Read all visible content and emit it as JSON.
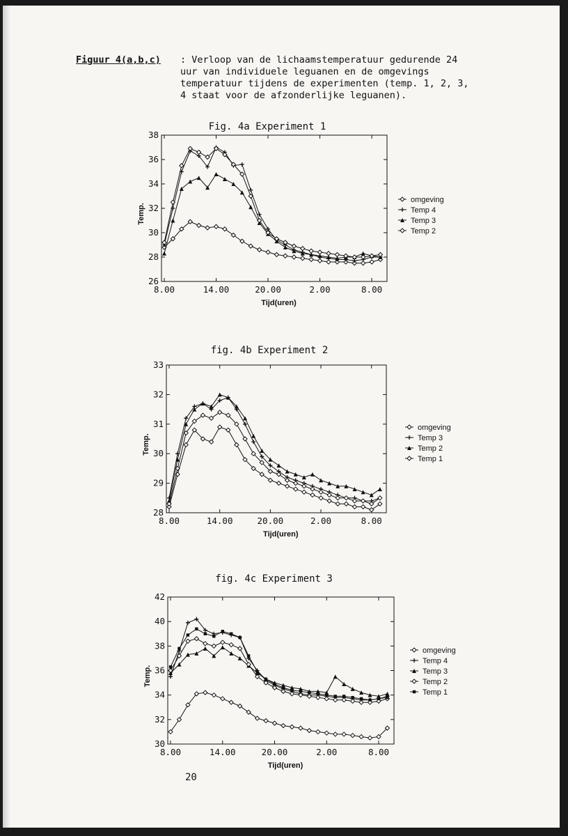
{
  "caption": {
    "label": "Figuur 4(a,b,c)",
    "text": ": Verloop van de lichaamstemperatuur gedurende 24 uur van individuele leguanen en de omgevings temperatuur tijdens de experimenten (temp. 1, 2, 3, 4 staat voor de afzonderlijke leguanen)."
  },
  "page_number": "20",
  "chart_data": [
    {
      "type": "line",
      "title": "Fig. 4a Experiment 1",
      "xlabel": "Tijd(uren)",
      "ylabel": "Temp.",
      "x_tick_labels": [
        "8.00",
        "14.00",
        "20.00",
        "2.00",
        "8.00"
      ],
      "y_ticks": [
        26,
        28,
        30,
        32,
        34,
        36,
        38
      ],
      "ylim": [
        26,
        38
      ],
      "x_hours": [
        8,
        9,
        10,
        11,
        12,
        13,
        14,
        15,
        16,
        17,
        18,
        19,
        20,
        21,
        22,
        23,
        24,
        25,
        26,
        27,
        28,
        29,
        30,
        31,
        32,
        33
      ],
      "legend": [
        "omgeving",
        "Temp 4",
        "Temp 3",
        "Temp 2"
      ],
      "series": [
        {
          "name": "omgeving",
          "marker": "open-diamond",
          "values": [
            28.8,
            29.5,
            30.3,
            30.9,
            30.6,
            30.4,
            30.5,
            30.3,
            29.8,
            29.3,
            28.9,
            28.6,
            28.4,
            28.2,
            28.1,
            28.0,
            27.9,
            27.8,
            27.7,
            27.6,
            27.6,
            27.6,
            27.5,
            27.5,
            27.6,
            27.8
          ]
        },
        {
          "name": "Temp 4",
          "marker": "plus",
          "values": [
            29.0,
            32.0,
            35.0,
            36.7,
            36.3,
            35.4,
            37.0,
            36.6,
            35.5,
            35.6,
            33.5,
            31.5,
            30.3,
            29.4,
            29.0,
            28.6,
            28.4,
            28.2,
            28.0,
            27.9,
            27.8,
            27.8,
            27.7,
            27.8,
            28.0,
            28.0
          ]
        },
        {
          "name": "Temp 3",
          "marker": "filled-triangle",
          "values": [
            28.3,
            31.0,
            33.6,
            34.2,
            34.5,
            33.7,
            34.8,
            34.4,
            34.0,
            33.3,
            32.1,
            30.8,
            29.9,
            29.3,
            28.8,
            28.5,
            28.3,
            28.2,
            28.1,
            28.0,
            27.9,
            28.0,
            28.0,
            28.3,
            28.1,
            28.0
          ]
        },
        {
          "name": "Temp 2",
          "marker": "open-diamond",
          "values": [
            29.2,
            32.5,
            35.5,
            36.9,
            36.6,
            36.2,
            36.9,
            36.4,
            35.6,
            34.8,
            33.0,
            31.0,
            30.0,
            29.5,
            29.2,
            28.9,
            28.7,
            28.5,
            28.4,
            28.3,
            28.2,
            28.1,
            28.0,
            28.0,
            28.1,
            28.2
          ]
        }
      ]
    },
    {
      "type": "line",
      "title": "fig. 4b Experiment 2",
      "xlabel": "Tijd(uren)",
      "ylabel": "Temp.",
      "x_tick_labels": [
        "8.00",
        "14.00",
        "20.00",
        "2.00",
        "8.00"
      ],
      "y_ticks": [
        28,
        29,
        30,
        31,
        32,
        33
      ],
      "ylim": [
        28,
        33
      ],
      "x_hours": [
        8,
        9,
        10,
        11,
        12,
        13,
        14,
        15,
        16,
        17,
        18,
        19,
        20,
        21,
        22,
        23,
        24,
        25,
        26,
        27,
        28,
        29,
        30,
        31,
        32,
        33
      ],
      "legend": [
        "omgeving",
        "Temp 3",
        "Temp 2",
        "Temp 1"
      ],
      "series": [
        {
          "name": "omgeving",
          "marker": "open-diamond",
          "values": [
            28.2,
            29.3,
            30.3,
            30.8,
            30.5,
            30.4,
            30.9,
            30.8,
            30.3,
            29.8,
            29.5,
            29.3,
            29.1,
            29.0,
            28.9,
            28.8,
            28.7,
            28.6,
            28.5,
            28.4,
            28.3,
            28.3,
            28.2,
            28.2,
            28.1,
            28.3
          ]
        },
        {
          "name": "Temp 3",
          "marker": "plus",
          "values": [
            28.5,
            30.0,
            31.2,
            31.6,
            31.7,
            31.5,
            31.8,
            31.9,
            31.5,
            31.0,
            30.4,
            29.9,
            29.6,
            29.4,
            29.2,
            29.1,
            29.0,
            28.9,
            28.8,
            28.7,
            28.6,
            28.5,
            28.5,
            28.4,
            28.4,
            28.5
          ]
        },
        {
          "name": "Temp 2",
          "marker": "filled-triangle",
          "values": [
            28.4,
            29.8,
            31.0,
            31.5,
            31.7,
            31.6,
            32.0,
            31.9,
            31.6,
            31.2,
            30.6,
            30.1,
            29.8,
            29.6,
            29.4,
            29.3,
            29.2,
            29.3,
            29.1,
            29.0,
            28.9,
            28.9,
            28.8,
            28.7,
            28.6,
            28.8
          ]
        },
        {
          "name": "Temp 1",
          "marker": "open-diamond",
          "values": [
            28.3,
            29.5,
            30.7,
            31.1,
            31.3,
            31.2,
            31.4,
            31.3,
            31.0,
            30.5,
            30.0,
            29.7,
            29.4,
            29.3,
            29.1,
            29.0,
            28.9,
            28.8,
            28.7,
            28.6,
            28.5,
            28.5,
            28.4,
            28.4,
            28.3,
            28.5
          ]
        }
      ]
    },
    {
      "type": "line",
      "title": "fig. 4c Experiment 3",
      "xlabel": "Tijd(uren)",
      "ylabel": "Temp.",
      "x_tick_labels": [
        "8.00",
        "14.00",
        "20.00",
        "2.00",
        "8.00"
      ],
      "y_ticks": [
        30,
        32,
        34,
        36,
        38,
        40,
        42
      ],
      "ylim": [
        30,
        42
      ],
      "x_hours": [
        8,
        9,
        10,
        11,
        12,
        13,
        14,
        15,
        16,
        17,
        18,
        19,
        20,
        21,
        22,
        23,
        24,
        25,
        26,
        27,
        28,
        29,
        30,
        31,
        32,
        33
      ],
      "legend": [
        "omgeving",
        "Temp 4",
        "Temp 3",
        "Temp 2",
        "Temp 1"
      ],
      "series": [
        {
          "name": "omgeving",
          "marker": "open-diamond",
          "values": [
            31.0,
            32.0,
            33.2,
            34.1,
            34.2,
            34.0,
            33.7,
            33.4,
            33.1,
            32.6,
            32.1,
            31.9,
            31.7,
            31.5,
            31.4,
            31.3,
            31.1,
            31.0,
            30.9,
            30.8,
            30.8,
            30.7,
            30.6,
            30.5,
            30.6,
            31.3
          ]
        },
        {
          "name": "Temp 4",
          "marker": "plus",
          "values": [
            35.5,
            37.6,
            39.9,
            40.2,
            39.3,
            39.0,
            39.1,
            38.9,
            38.7,
            37.0,
            36.0,
            35.2,
            34.8,
            34.5,
            34.3,
            34.1,
            34.0,
            34.0,
            33.9,
            33.8,
            33.8,
            33.7,
            33.6,
            33.6,
            33.7,
            33.9
          ]
        },
        {
          "name": "Temp 3",
          "marker": "filled-triangle",
          "values": [
            35.8,
            36.5,
            37.3,
            37.4,
            37.8,
            37.2,
            37.9,
            37.4,
            37.0,
            36.4,
            35.8,
            35.3,
            35.0,
            34.8,
            34.6,
            34.5,
            34.3,
            34.3,
            34.2,
            35.5,
            34.9,
            34.5,
            34.2,
            34.0,
            33.9,
            34.1
          ]
        },
        {
          "name": "Temp 2",
          "marker": "open-diamond",
          "values": [
            36.0,
            37.2,
            38.4,
            38.6,
            38.2,
            38.0,
            38.3,
            38.1,
            37.8,
            36.5,
            35.5,
            35.0,
            34.6,
            34.3,
            34.1,
            34.0,
            33.9,
            33.8,
            33.7,
            33.6,
            33.6,
            33.5,
            33.4,
            33.4,
            33.5,
            33.7
          ]
        },
        {
          "name": "Temp 1",
          "marker": "filled-square",
          "values": [
            36.3,
            37.8,
            38.9,
            39.4,
            39.0,
            38.8,
            39.2,
            39.0,
            38.7,
            37.2,
            35.9,
            35.3,
            34.9,
            34.6,
            34.4,
            34.3,
            34.2,
            34.1,
            34.0,
            33.9,
            33.9,
            33.8,
            33.7,
            33.6,
            33.7,
            33.8
          ]
        }
      ]
    }
  ]
}
